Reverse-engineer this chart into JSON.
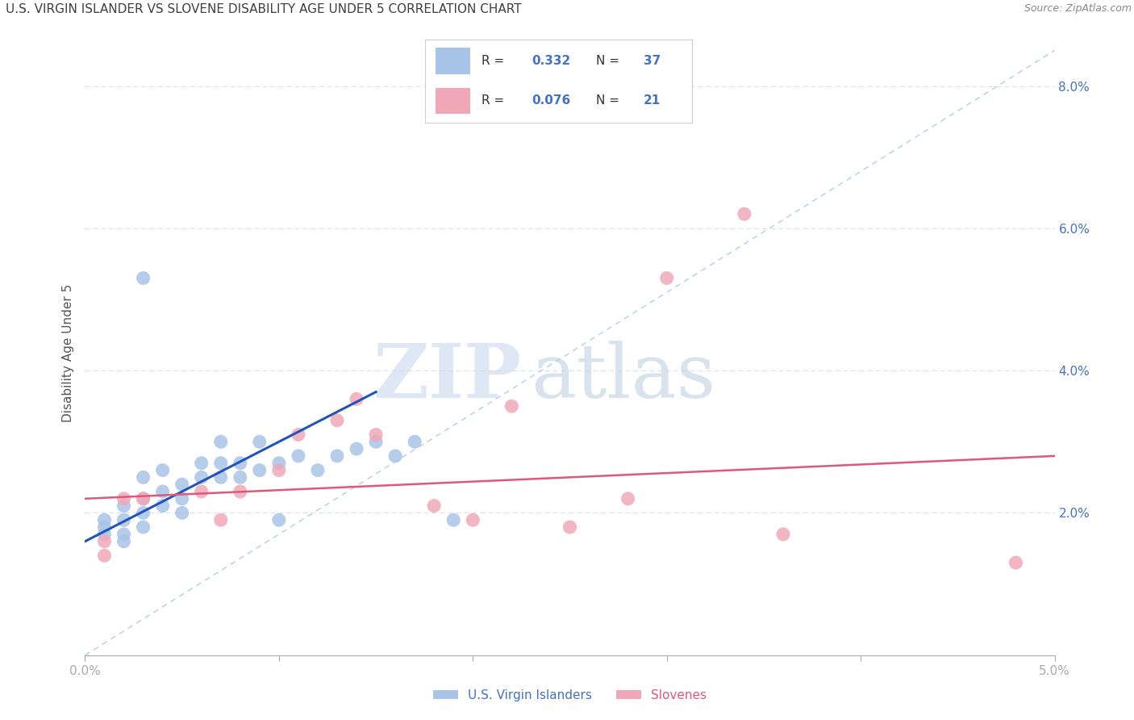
{
  "title": "U.S. VIRGIN ISLANDER VS SLOVENE DISABILITY AGE UNDER 5 CORRELATION CHART",
  "source": "Source: ZipAtlas.com",
  "ylabel": "Disability Age Under 5",
  "legend_blue_label": "U.S. Virgin Islanders",
  "legend_pink_label": "Slovenes",
  "watermark_zip": "ZIP",
  "watermark_atlas": "atlas",
  "blue_scatter_x": [
    0.001,
    0.001,
    0.001,
    0.002,
    0.002,
    0.002,
    0.002,
    0.003,
    0.003,
    0.003,
    0.003,
    0.004,
    0.004,
    0.004,
    0.005,
    0.005,
    0.005,
    0.006,
    0.006,
    0.007,
    0.007,
    0.007,
    0.008,
    0.008,
    0.009,
    0.009,
    0.01,
    0.01,
    0.011,
    0.012,
    0.013,
    0.014,
    0.015,
    0.016,
    0.017,
    0.019,
    0.003
  ],
  "blue_scatter_y": [
    0.017,
    0.018,
    0.019,
    0.017,
    0.019,
    0.021,
    0.016,
    0.02,
    0.022,
    0.018,
    0.025,
    0.021,
    0.023,
    0.026,
    0.022,
    0.024,
    0.02,
    0.025,
    0.027,
    0.025,
    0.027,
    0.03,
    0.025,
    0.027,
    0.026,
    0.03,
    0.019,
    0.027,
    0.028,
    0.026,
    0.028,
    0.029,
    0.03,
    0.028,
    0.03,
    0.019,
    0.053
  ],
  "pink_scatter_x": [
    0.001,
    0.001,
    0.002,
    0.003,
    0.006,
    0.007,
    0.008,
    0.01,
    0.011,
    0.013,
    0.014,
    0.015,
    0.018,
    0.02,
    0.022,
    0.025,
    0.028,
    0.03,
    0.034,
    0.036,
    0.048
  ],
  "pink_scatter_y": [
    0.014,
    0.016,
    0.022,
    0.022,
    0.023,
    0.019,
    0.023,
    0.026,
    0.031,
    0.033,
    0.036,
    0.031,
    0.021,
    0.019,
    0.035,
    0.018,
    0.022,
    0.053,
    0.062,
    0.017,
    0.013
  ],
  "blue_line_x": [
    0.0,
    0.015
  ],
  "blue_line_y": [
    0.016,
    0.037
  ],
  "pink_line_x": [
    0.0,
    0.05
  ],
  "pink_line_y": [
    0.022,
    0.028
  ],
  "blue_dot_color": "#a8c4e8",
  "pink_dot_color": "#f0a8b8",
  "blue_line_color": "#2255bb",
  "pink_line_color": "#e05878",
  "dashed_line_color": "#b8cce4",
  "grid_color": "#d8dfe8",
  "title_color": "#404040",
  "axis_label_color": "#4472c4",
  "text_dark": "#333333",
  "xlim": [
    0.0,
    0.05
  ],
  "ylim": [
    0.0,
    0.085
  ],
  "xticks": [
    0.0,
    0.01,
    0.02,
    0.03,
    0.04,
    0.05
  ],
  "ytick_vals": [
    0.02,
    0.04,
    0.06,
    0.08
  ]
}
